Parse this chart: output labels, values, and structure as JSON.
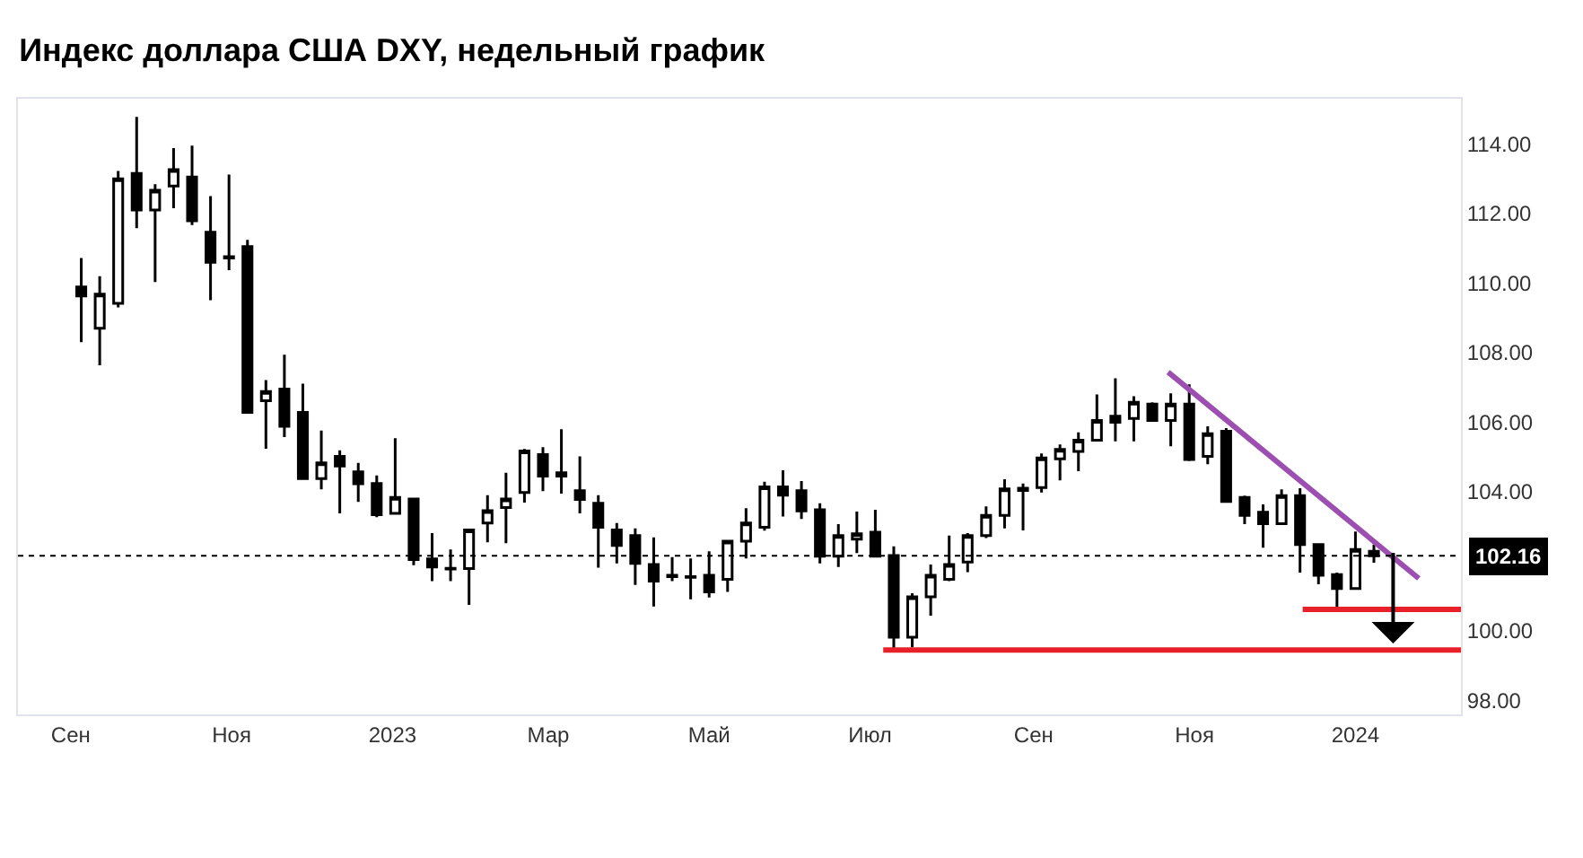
{
  "chart_data": {
    "type": "candlestick",
    "title": "Индекс доллара США DXY, недельный график",
    "color": "#000000",
    "x": [
      "2022-09-05",
      "2022-09-12",
      "2022-09-19",
      "2022-09-26",
      "2022-10-03",
      "2022-10-10",
      "2022-10-17",
      "2022-10-24",
      "2022-10-31",
      "2022-11-07",
      "2022-11-14",
      "2022-11-21",
      "2022-11-28",
      "2022-12-05",
      "2022-12-12",
      "2022-12-19",
      "2022-12-26",
      "2023-01-02",
      "2023-01-09",
      "2023-01-16",
      "2023-01-23",
      "2023-01-30",
      "2023-02-06",
      "2023-02-13",
      "2023-02-20",
      "2023-02-27",
      "2023-03-06",
      "2023-03-13",
      "2023-03-20",
      "2023-03-27",
      "2023-04-03",
      "2023-04-10",
      "2023-04-17",
      "2023-04-24",
      "2023-05-01",
      "2023-05-08",
      "2023-05-15",
      "2023-05-22",
      "2023-05-29",
      "2023-06-05",
      "2023-06-12",
      "2023-06-19",
      "2023-06-26",
      "2023-07-03",
      "2023-07-10",
      "2023-07-17",
      "2023-07-24",
      "2023-07-31",
      "2023-08-07",
      "2023-08-14",
      "2023-08-21",
      "2023-08-28",
      "2023-09-04",
      "2023-09-11",
      "2023-09-18",
      "2023-09-25",
      "2023-10-02",
      "2023-10-09",
      "2023-10-16",
      "2023-10-23",
      "2023-10-30",
      "2023-11-06",
      "2023-11-13",
      "2023-11-20",
      "2023-11-27",
      "2023-12-04",
      "2023-12-11",
      "2023-12-18",
      "2023-12-25",
      "2024-01-01",
      "2024-01-08"
    ],
    "ohlc": [
      [
        109.89,
        110.72,
        108.3,
        109.63
      ],
      [
        108.7,
        110.2,
        107.64,
        109.68
      ],
      [
        109.42,
        113.22,
        109.3,
        113.0
      ],
      [
        113.15,
        114.78,
        111.58,
        112.1
      ],
      [
        112.1,
        112.84,
        110.03,
        112.67
      ],
      [
        112.79,
        113.88,
        112.15,
        113.26
      ],
      [
        113.05,
        113.95,
        111.67,
        111.79
      ],
      [
        111.46,
        112.5,
        109.51,
        110.6
      ],
      [
        110.76,
        113.12,
        110.37,
        110.72
      ],
      [
        111.05,
        111.24,
        106.25,
        106.28
      ],
      [
        106.62,
        107.21,
        105.24,
        106.88
      ],
      [
        106.95,
        107.94,
        105.57,
        105.88
      ],
      [
        106.28,
        107.11,
        104.35,
        104.38
      ],
      [
        104.38,
        105.76,
        104.07,
        104.83
      ],
      [
        105.02,
        105.19,
        103.38,
        104.74
      ],
      [
        104.57,
        104.83,
        103.71,
        104.23
      ],
      [
        104.24,
        104.47,
        103.27,
        103.34
      ],
      [
        103.38,
        105.54,
        103.38,
        103.84
      ],
      [
        103.79,
        103.79,
        101.89,
        102.05
      ],
      [
        102.07,
        102.81,
        101.43,
        101.84
      ],
      [
        101.8,
        102.34,
        101.43,
        101.78
      ],
      [
        101.79,
        102.9,
        100.75,
        102.9
      ],
      [
        103.1,
        103.9,
        102.55,
        103.46
      ],
      [
        103.55,
        104.55,
        102.52,
        103.79
      ],
      [
        103.98,
        105.23,
        103.69,
        105.17
      ],
      [
        105.07,
        105.28,
        104.02,
        104.45
      ],
      [
        104.45,
        105.8,
        103.95,
        104.55
      ],
      [
        104.03,
        105.02,
        103.38,
        103.78
      ],
      [
        103.67,
        103.9,
        101.82,
        102.98
      ],
      [
        102.9,
        103.1,
        101.94,
        102.46
      ],
      [
        102.74,
        102.95,
        101.32,
        101.94
      ],
      [
        101.91,
        102.69,
        100.7,
        101.43
      ],
      [
        101.6,
        102.12,
        101.43,
        101.56
      ],
      [
        101.56,
        102.08,
        100.91,
        101.54
      ],
      [
        101.6,
        102.29,
        100.96,
        101.12
      ],
      [
        101.48,
        102.6,
        101.12,
        102.58
      ],
      [
        102.58,
        103.53,
        102.08,
        103.1
      ],
      [
        102.98,
        104.29,
        102.88,
        104.14
      ],
      [
        104.14,
        104.62,
        103.29,
        103.9
      ],
      [
        104.03,
        104.31,
        103.22,
        103.45
      ],
      [
        103.48,
        103.67,
        101.94,
        102.15
      ],
      [
        102.15,
        103.07,
        101.84,
        102.74
      ],
      [
        102.64,
        103.43,
        102.24,
        102.79
      ],
      [
        102.84,
        103.48,
        102.15,
        102.15
      ],
      [
        102.17,
        102.43,
        99.46,
        99.82
      ],
      [
        99.82,
        101.08,
        99.53,
        100.98
      ],
      [
        100.98,
        101.91,
        100.44,
        101.6
      ],
      [
        101.48,
        102.74,
        101.43,
        101.91
      ],
      [
        101.98,
        102.81,
        101.69,
        102.74
      ],
      [
        102.74,
        103.58,
        102.67,
        103.32
      ],
      [
        103.32,
        104.36,
        102.95,
        104.08
      ],
      [
        104.1,
        104.24,
        102.89,
        104.04
      ],
      [
        104.12,
        105.1,
        103.98,
        104.97
      ],
      [
        104.95,
        105.36,
        104.33,
        105.22
      ],
      [
        105.16,
        105.71,
        104.59,
        105.48
      ],
      [
        105.48,
        106.8,
        105.48,
        106.05
      ],
      [
        106.17,
        107.26,
        105.45,
        106.0
      ],
      [
        106.11,
        106.75,
        105.45,
        106.57
      ],
      [
        106.52,
        106.57,
        106.05,
        106.05
      ],
      [
        106.05,
        106.83,
        105.31,
        106.52
      ],
      [
        106.52,
        107.09,
        104.88,
        104.93
      ],
      [
        105.02,
        105.88,
        104.79,
        105.67
      ],
      [
        105.74,
        105.83,
        103.72,
        103.72
      ],
      [
        103.84,
        103.89,
        103.07,
        103.32
      ],
      [
        103.41,
        103.64,
        102.39,
        103.08
      ],
      [
        103.08,
        104.07,
        103.08,
        103.89
      ],
      [
        103.89,
        104.1,
        101.68,
        102.48
      ],
      [
        102.48,
        102.51,
        101.34,
        101.6
      ],
      [
        101.62,
        101.68,
        100.65,
        101.22
      ],
      [
        101.22,
        102.86,
        101.22,
        102.34
      ],
      [
        102.29,
        102.48,
        101.96,
        102.16
      ]
    ],
    "series": [
      {
        "type": "line",
        "color": "#9c4fb0",
        "x": [
          "2023-10-22",
          "2024-01-25"
        ],
        "values": [
          107.44,
          101.51
        ]
      },
      {
        "type": "line",
        "color": "#e8202a",
        "x": [
          "2023-07-06",
          "2024-02-10"
        ],
        "values": [
          99.45,
          99.45
        ]
      },
      {
        "type": "line",
        "color": "#e8202a",
        "x": [
          "2023-12-12",
          "2024-02-10"
        ],
        "values": [
          100.62,
          100.62
        ]
      }
    ],
    "xlim": [
      "2022-08-12",
      "2024-02-10"
    ],
    "xticks": [
      {
        "value": "2022-09-01",
        "label": "Сен"
      },
      {
        "value": "2022-11-01",
        "label": "Ноя"
      },
      {
        "value": "2023-01-01",
        "label": "2023"
      },
      {
        "value": "2023-03-01",
        "label": "Мар"
      },
      {
        "value": "2023-05-01",
        "label": "Май"
      },
      {
        "value": "2023-07-01",
        "label": "Июл"
      },
      {
        "value": "2023-09-01",
        "label": "Сен"
      },
      {
        "value": "2023-11-01",
        "label": "Ноя"
      },
      {
        "value": "2024-01-01",
        "label": "2024"
      }
    ],
    "ylim": [
      97.6,
      115.3
    ],
    "yticks": [
      {
        "value": 98,
        "label": "98.00"
      },
      {
        "value": 100,
        "label": "100.00"
      },
      {
        "value": 104,
        "label": "104.00"
      },
      {
        "value": 106,
        "label": "106.00"
      },
      {
        "value": 108,
        "label": "108.00"
      },
      {
        "value": 110,
        "label": "110.00"
      },
      {
        "value": 112,
        "label": "112.00"
      },
      {
        "value": 114,
        "label": "114.00"
      }
    ],
    "ref_lines": [
      {
        "axis": "y",
        "value": 102.16,
        "label": "102.16",
        "line_style": "dotted",
        "color": "#000000"
      }
    ]
  }
}
